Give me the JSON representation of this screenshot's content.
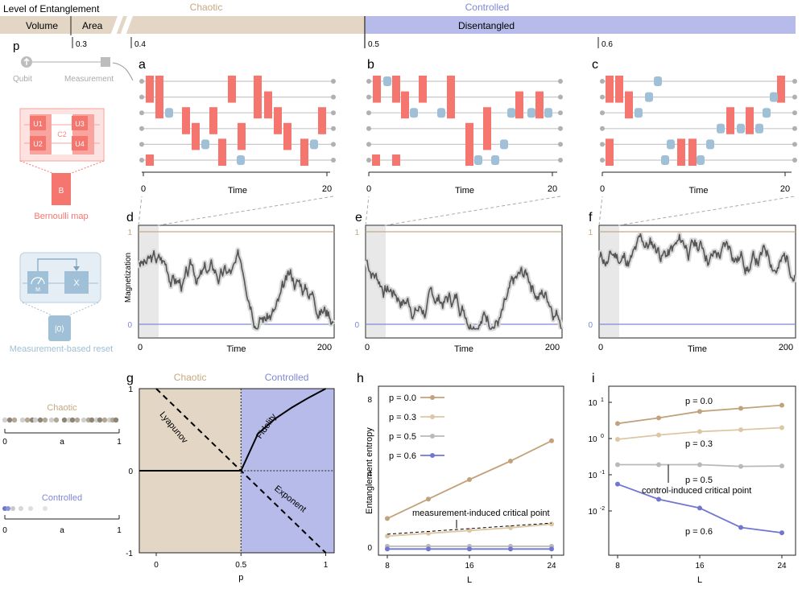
{
  "colors": {
    "chaotic": "#e3d6c4",
    "chaotic_text": "#c7a882",
    "controlled": "#b6bbea",
    "controlled_text": "#7f87d6",
    "gate": "#f5766e",
    "meas": "#9fc0d6",
    "wire": "#c8c8c8",
    "trace": "#555555",
    "trace_band": "#d9d9d9",
    "shade": "#e8e8e8",
    "top_line": "#c4a985",
    "bottom_line": "#7f87d6",
    "ent_p00": "#c2a27c",
    "ent_p03": "#dcc7a5",
    "ent_p05": "#b9b9b9",
    "ent_p06": "#7177cf"
  },
  "top_bar": {
    "title": "Level of Entanglement",
    "volume": "Volume",
    "area": "Area",
    "chaotic": "Chaotic",
    "controlled": "Controlled",
    "disentangled": "Disentangled",
    "p_label": "p",
    "ticks": [
      "0.3",
      "0.4",
      "0.5",
      "0.6"
    ]
  },
  "left_panel": {
    "qubit": "Qubit",
    "measurement": "Measurement",
    "u1": "U1",
    "u2": "U2",
    "c2": "C2",
    "u3": "U3",
    "u4": "U4",
    "b": "B",
    "bernoulli": "Bernoulli map",
    "m": "M",
    "x": "X",
    "ket0": "|0⟩",
    "reset": "Measurement-based reset",
    "chaotic": "Chaotic",
    "controlled": "Controlled",
    "axis_a": "a",
    "tick0": "0",
    "tick1": "1"
  },
  "circuits": {
    "labels": [
      "a",
      "b",
      "c"
    ],
    "xlabel": "Time",
    "tick0": "0",
    "tick20": "20"
  },
  "traces": {
    "labels": [
      "d",
      "e",
      "f"
    ],
    "ylabel": "Magnetization",
    "xlabel": "Time",
    "tick0": "0",
    "tick200": "200",
    "y1": "1",
    "y0": "0"
  },
  "chart_data": [
    {
      "panel": "g",
      "type": "line",
      "title": "",
      "xlabel": "p",
      "region_labels": [
        "Chaotic",
        "Controlled"
      ],
      "xlim": [
        -0.1,
        1.05
      ],
      "ylim": [
        -1,
        1
      ],
      "x_ticks": [
        "0",
        "0.5",
        "1"
      ],
      "y_ticks": [
        "1",
        "0",
        "-1"
      ],
      "series": [
        {
          "name": "Lyapunov Exponent",
          "x": [
            0,
            1
          ],
          "y": [
            1,
            -1
          ],
          "style": "dashed"
        },
        {
          "name": "Fidelity",
          "x": [
            0.5,
            0.6,
            0.7,
            0.8,
            0.9,
            1.0
          ],
          "y": [
            0,
            0.45,
            0.63,
            0.77,
            0.89,
            1.0
          ],
          "style": "solid"
        },
        {
          "name": "",
          "x": [
            -0.1,
            0.5
          ],
          "y": [
            0,
            0
          ],
          "style": "solid"
        }
      ],
      "annotations": [
        "Lyapunov",
        "Fidelity",
        "Exponent"
      ]
    },
    {
      "panel": "h",
      "type": "line",
      "title": "",
      "xlabel": "L",
      "ylabel": "Entanglement entropy",
      "categories": [
        8,
        12,
        16,
        20,
        24
      ],
      "x_ticks": [
        "8",
        "16",
        "24"
      ],
      "y_ticks": [
        "8",
        "4",
        "0"
      ],
      "ylim": [
        0,
        8
      ],
      "series": [
        {
          "name": "p = 0.0",
          "values": [
            1.55,
            2.6,
            3.65,
            4.65,
            5.75
          ]
        },
        {
          "name": "p = 0.3",
          "values": [
            0.6,
            0.75,
            0.9,
            1.05,
            1.25
          ]
        },
        {
          "name": "p = 0.5",
          "values": [
            0.05,
            0.05,
            0.05,
            0.05,
            0.05
          ]
        },
        {
          "name": "p = 0.6",
          "values": [
            -0.1,
            -0.1,
            -0.1,
            -0.1,
            -0.1
          ]
        }
      ],
      "annotation": "measurement-induced critical point"
    },
    {
      "panel": "i",
      "type": "line",
      "title": "",
      "xlabel": "L",
      "y_scale": "log",
      "categories": [
        8,
        12,
        16,
        20,
        24
      ],
      "x_ticks": [
        "8",
        "16",
        "24"
      ],
      "y_tick_labels": [
        "10^1",
        "10^0",
        "10^-1",
        "10^-2"
      ],
      "series": [
        {
          "name": "p = 0.0",
          "values": [
            2.6,
            3.7,
            5.6,
            6.8,
            8.3
          ]
        },
        {
          "name": "p = 0.3",
          "values": [
            0.95,
            1.25,
            1.55,
            1.75,
            2.0
          ]
        },
        {
          "name": "p = 0.5",
          "values": [
            0.19,
            0.19,
            0.19,
            0.17,
            0.175
          ]
        },
        {
          "name": "p = 0.6",
          "values": [
            0.055,
            0.021,
            0.012,
            0.0035,
            0.0025
          ]
        }
      ],
      "annotation": "control-induced critical point"
    }
  ]
}
